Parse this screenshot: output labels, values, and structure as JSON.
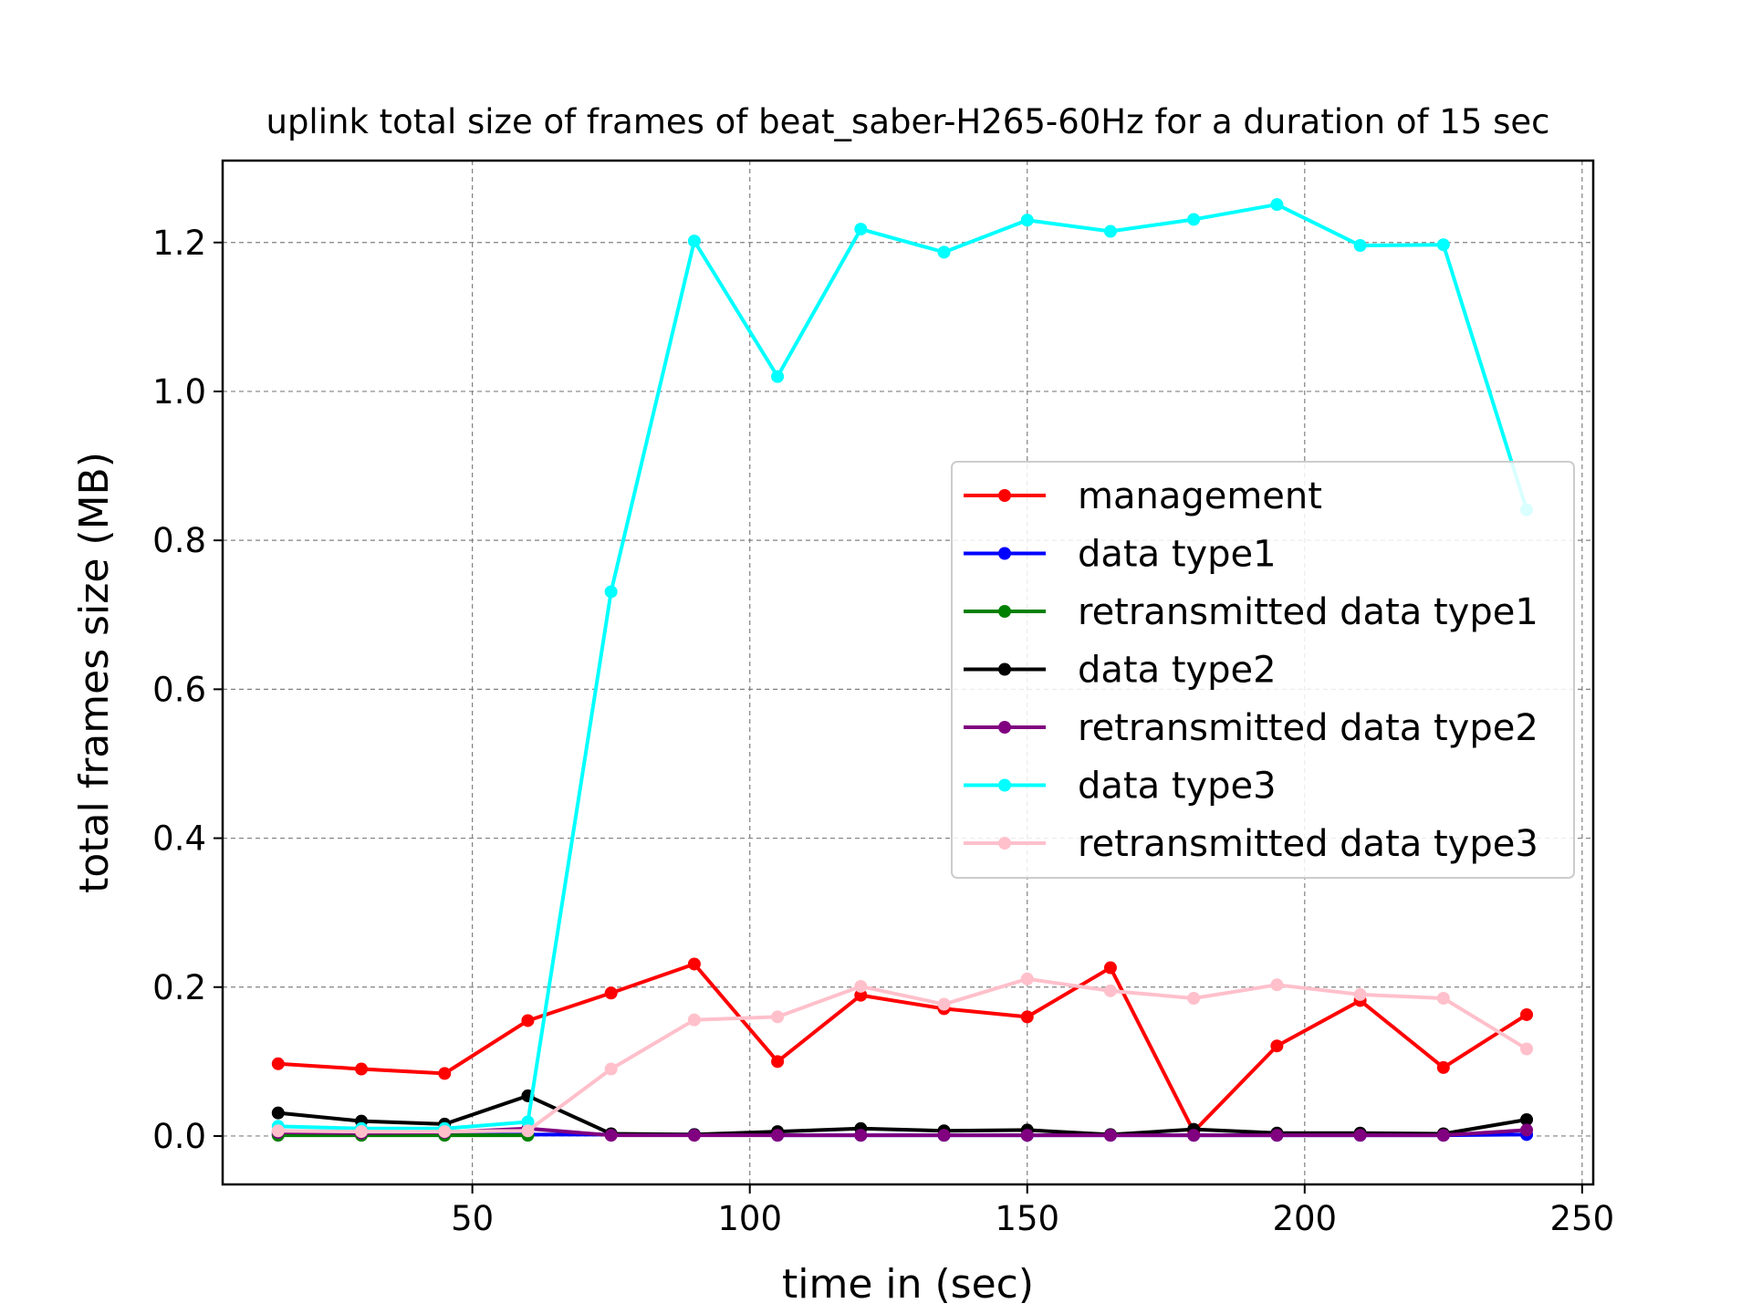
{
  "chart_data": {
    "type": "line",
    "title": "uplink total size of frames of beat_saber-H265-60Hz for a duration of 15 sec",
    "xlabel": "time in (sec)",
    "ylabel": "total frames size (MB)",
    "xlim": [
      5,
      252
    ],
    "ylim": [
      -0.065,
      1.31
    ],
    "xticks": [
      50,
      100,
      150,
      200,
      250
    ],
    "yticks": [
      0.0,
      0.2,
      0.4,
      0.6,
      0.8,
      1.0,
      1.2
    ],
    "xtick_labels": [
      "50",
      "100",
      "150",
      "200",
      "250"
    ],
    "ytick_labels": [
      "0.0",
      "0.2",
      "0.4",
      "0.6",
      "0.8",
      "1.0",
      "1.2"
    ],
    "grid": true,
    "legend_position": "center-right",
    "x": [
      15,
      30,
      45,
      60,
      75,
      90,
      105,
      120,
      135,
      150,
      165,
      180,
      195,
      210,
      225,
      240
    ],
    "series": [
      {
        "name": "management",
        "color": "#ff0000",
        "values": [
          0.097,
          0.09,
          0.084,
          0.155,
          0.192,
          0.231,
          0.1,
          0.189,
          0.171,
          0.16,
          0.226,
          0.006,
          0.121,
          0.182,
          0.092,
          0.163
        ]
      },
      {
        "name": "data type1",
        "color": "#0000ff",
        "values": [
          0.002,
          0.002,
          0.002,
          0.002,
          0.002,
          0.002,
          0.001,
          0.001,
          0.001,
          0.001,
          0.001,
          0.001,
          0.001,
          0.001,
          0.001,
          0.002
        ]
      },
      {
        "name": "retransmitted data type1",
        "color": "#008000",
        "values": [
          0.001,
          0.001,
          0.001,
          0.001,
          null,
          null,
          null,
          null,
          null,
          null,
          null,
          null,
          null,
          null,
          null,
          null
        ]
      },
      {
        "name": "data type2",
        "color": "#000000",
        "values": [
          0.031,
          0.02,
          0.016,
          0.054,
          0.003,
          0.002,
          0.006,
          0.01,
          0.007,
          0.008,
          0.002,
          0.009,
          0.004,
          0.004,
          0.003,
          0.022
        ]
      },
      {
        "name": "retransmitted data type2",
        "color": "#800080",
        "values": [
          0.005,
          0.004,
          0.005,
          0.01,
          0.001,
          0.001,
          0.001,
          0.001,
          0.001,
          0.001,
          0.001,
          0.001,
          0.001,
          0.001,
          0.001,
          0.008
        ]
      },
      {
        "name": "data type3",
        "color": "#00ffff",
        "values": [
          0.013,
          0.01,
          0.01,
          0.019,
          0.731,
          1.202,
          1.02,
          1.218,
          1.187,
          1.23,
          1.215,
          1.231,
          1.251,
          1.196,
          1.197,
          0.841
        ]
      },
      {
        "name": "retransmitted data type3",
        "color": "#ffc0cb",
        "values": [
          0.007,
          0.006,
          0.006,
          0.007,
          0.09,
          0.156,
          0.16,
          0.201,
          0.177,
          0.211,
          0.195,
          0.185,
          0.203,
          0.19,
          0.185,
          0.117
        ]
      }
    ]
  }
}
